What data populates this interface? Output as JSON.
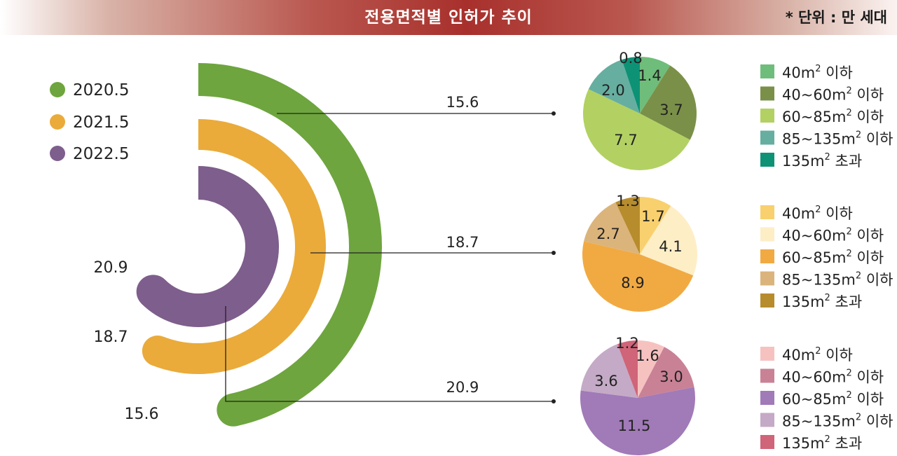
{
  "header": {
    "title": "전용면적별 인허가 추이",
    "unit": "* 단위 : 만 세대"
  },
  "chart_data": [
    {
      "type": "radial_bar",
      "series": [
        {
          "name": "2020.5",
          "value": 15.6,
          "color": "#6ea53e"
        },
        {
          "name": "2021.5",
          "value": 18.7,
          "color": "#eaab3a"
        },
        {
          "name": "2022.5",
          "value": 20.9,
          "color": "#7e5e8c"
        }
      ],
      "legend_position": "top-left"
    },
    {
      "type": "pie",
      "total": 15.6,
      "slices": [
        {
          "value": 1.4,
          "label": "1.4"
        },
        {
          "value": 3.7,
          "label": "3.7"
        },
        {
          "value": 7.7,
          "label": "7.7"
        },
        {
          "value": 2.0,
          "label": "2.0"
        },
        {
          "value": 0.8,
          "label": "0.8"
        }
      ],
      "colors": [
        "#6fbd7a",
        "#7a9048",
        "#b2d162",
        "#66aea0",
        "#0d9276"
      ],
      "legend": [
        {
          "base": "40m",
          "sup": "2",
          "suffix": " 이하"
        },
        {
          "base": "40~60m",
          "sup": "2",
          "suffix": " 이하"
        },
        {
          "base": "60~85m",
          "sup": "2",
          "suffix": " 이하"
        },
        {
          "base": "85~135m",
          "sup": "2",
          "suffix": " 이하"
        },
        {
          "base": "135m",
          "sup": "2",
          "suffix": " 초과"
        }
      ]
    },
    {
      "type": "pie",
      "total": 18.7,
      "slices": [
        {
          "value": 1.7,
          "label": "1.7"
        },
        {
          "value": 4.1,
          "label": "4.1"
        },
        {
          "value": 8.9,
          "label": "8.9"
        },
        {
          "value": 2.7,
          "label": "2.7"
        },
        {
          "value": 1.3,
          "label": "1.3"
        }
      ],
      "colors": [
        "#f9d06e",
        "#feeec6",
        "#f1aa42",
        "#dbb47c",
        "#b78c2d"
      ],
      "legend": [
        {
          "base": "40m",
          "sup": "2",
          "suffix": " 이하"
        },
        {
          "base": "40~60m",
          "sup": "2",
          "suffix": " 이하"
        },
        {
          "base": "60~85m",
          "sup": "2",
          "suffix": " 이하"
        },
        {
          "base": "85~135m",
          "sup": "2",
          "suffix": " 이하"
        },
        {
          "base": "135m",
          "sup": "2",
          "suffix": " 초과"
        }
      ]
    },
    {
      "type": "pie",
      "total": 20.9,
      "slices": [
        {
          "value": 1.6,
          "label": "1.6"
        },
        {
          "value": 3.0,
          "label": "3.0"
        },
        {
          "value": 11.5,
          "label": "11.5"
        },
        {
          "value": 3.6,
          "label": "3.6"
        },
        {
          "value": 1.2,
          "label": "1.2"
        }
      ],
      "colors": [
        "#f6c2c0",
        "#c98196",
        "#a17ab8",
        "#c4aac6",
        "#d06478"
      ],
      "legend": [
        {
          "base": "40m",
          "sup": "2",
          "suffix": " 이하"
        },
        {
          "base": "40~60m",
          "sup": "2",
          "suffix": " 이하"
        },
        {
          "base": "60~85m",
          "sup": "2",
          "suffix": " 이하"
        },
        {
          "base": "85~135m",
          "sup": "2",
          "suffix": " 이하"
        },
        {
          "base": "135m",
          "sup": "2",
          "suffix": " 초과"
        }
      ]
    }
  ]
}
